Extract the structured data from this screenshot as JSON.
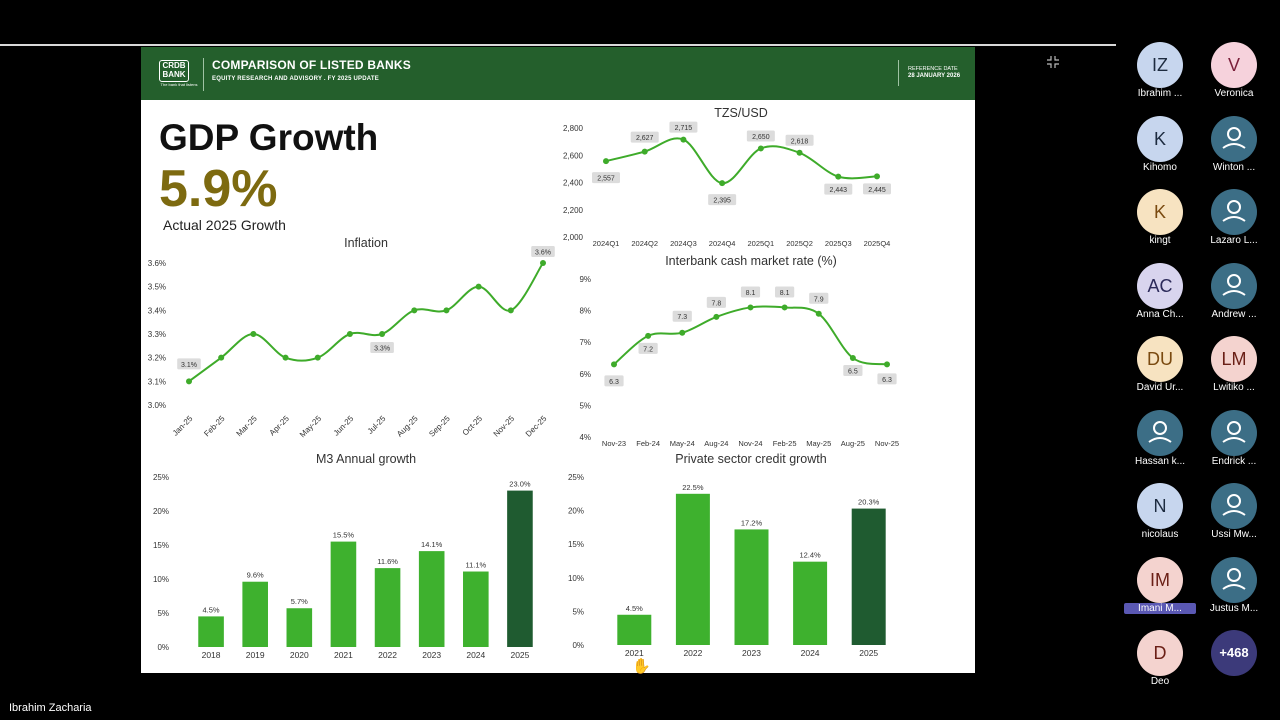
{
  "slide": {
    "header": {
      "logo_text": "CRDB BANK",
      "logo_tagline": "The bank that listens",
      "title": "COMPARISON OF LISTED BANKS",
      "subtitle": "EQUITY RESEARCH AND ADVISORY . FY 2025 UPDATE",
      "ref_label": "REFERENCE DATE",
      "ref_date": "28 JANUARY 2026"
    },
    "gdp": {
      "title": "GDP Growth",
      "value": "5.9%",
      "caption": "Actual 2025 Growth"
    }
  },
  "colors": {
    "banner": "#245f2c",
    "line": "#3eab2a",
    "bar": "#3eb12e",
    "bar_highlight": "#1f5b30",
    "gdp_value": "#7d6a10"
  },
  "chart_data": [
    {
      "id": "tzs",
      "type": "line",
      "title": "TZS/USD",
      "categories": [
        "2024Q1",
        "2024Q2",
        "2024Q3",
        "2024Q4",
        "2025Q1",
        "2025Q2",
        "2025Q3",
        "2025Q4"
      ],
      "values": [
        2557,
        2627,
        2715,
        2395,
        2650,
        2618,
        2443,
        2445
      ],
      "labels": [
        "2,557",
        "2,627",
        "2,715",
        "2,395",
        "2,650",
        "2,618",
        "2,443",
        "2,445"
      ],
      "yticks": [
        "2,000",
        "2,200",
        "2,400",
        "2,600",
        "2,800"
      ],
      "ylim": [
        2000,
        2800
      ],
      "grid": false
    },
    {
      "id": "inflation",
      "type": "line",
      "title": "Inflation",
      "categories": [
        "Jan-25",
        "Feb-25",
        "Mar-25",
        "Apr-25",
        "May-25",
        "Jun-25",
        "Jul-25",
        "Aug-25",
        "Sep-25",
        "Oct-25",
        "Nov-25",
        "Dec-25"
      ],
      "values": [
        3.1,
        3.2,
        3.3,
        3.2,
        3.2,
        3.3,
        3.3,
        3.4,
        3.4,
        3.5,
        3.4,
        3.6
      ],
      "data_labels": {
        "0": "3.1%",
        "6": "3.3%",
        "11": "3.6%"
      },
      "yticks": [
        "3.0%",
        "3.1%",
        "3.2%",
        "3.3%",
        "3.4%",
        "3.5%",
        "3.6%"
      ],
      "ylim": [
        3.0,
        3.6
      ],
      "grid": false
    },
    {
      "id": "interbank",
      "type": "line",
      "title": "Interbank cash market rate (%)",
      "categories": [
        "Nov-23",
        "Feb-24",
        "May-24",
        "Aug-24",
        "Nov-24",
        "Feb-25",
        "May-25",
        "Aug-25",
        "Nov-25"
      ],
      "values": [
        6.3,
        7.2,
        7.3,
        7.8,
        8.1,
        8.1,
        7.9,
        6.5,
        6.3
      ],
      "labels": [
        "6.3",
        "7.2",
        "7.3",
        "7.8",
        "8.1",
        "8.1",
        "7.9",
        "6.5",
        "6.3"
      ],
      "yticks": [
        "4%",
        "5%",
        "6%",
        "7%",
        "8%",
        "9%"
      ],
      "ylim": [
        4,
        9
      ],
      "grid": false
    },
    {
      "id": "m3",
      "type": "bar",
      "title": "M3 Annual growth",
      "categories": [
        "2018",
        "2019",
        "2020",
        "2021",
        "2022",
        "2023",
        "2024",
        "2025"
      ],
      "values": [
        4.5,
        9.6,
        5.7,
        15.5,
        11.6,
        14.1,
        11.1,
        23.0
      ],
      "labels": [
        "4.5%",
        "9.6%",
        "5.7%",
        "15.5%",
        "11.6%",
        "14.1%",
        "11.1%",
        "23.0%"
      ],
      "yticks": [
        "0%",
        "5%",
        "10%",
        "15%",
        "20%",
        "25%"
      ],
      "ylim": [
        0,
        25
      ],
      "highlight_last": true,
      "grid": false
    },
    {
      "id": "credit",
      "type": "bar",
      "title": "Private sector credit growth",
      "categories": [
        "2021",
        "2022",
        "2023",
        "2024",
        "2025"
      ],
      "values": [
        4.5,
        22.5,
        17.2,
        12.4,
        20.3
      ],
      "labels": [
        "4.5%",
        "22.5%",
        "17.2%",
        "12.4%",
        "20.3%"
      ],
      "yticks": [
        "0%",
        "5%",
        "10%",
        "15%",
        "20%",
        "25%"
      ],
      "ylim": [
        0,
        25
      ],
      "highlight_last": true,
      "grid": false
    }
  ],
  "meeting": {
    "presenter": "Ibrahim Zacharia",
    "participants": [
      {
        "initials": "IZ",
        "name": "Ibrahim ...",
        "bg": "#c7d6ee",
        "fg": "#1d2b3f"
      },
      {
        "initials": "V",
        "name": "Veronica",
        "bg": "#f6d2dc",
        "fg": "#7a1f3a"
      },
      {
        "initials": "K",
        "name": "Kihomo",
        "bg": "#c7d6ee",
        "fg": "#1d2b3f"
      },
      {
        "initials": "",
        "name": "Winton ...",
        "bg": "#3c6e86",
        "fg": "#ffffff"
      },
      {
        "initials": "K",
        "name": "kingt",
        "bg": "#f7e3c1",
        "fg": "#7a4a10"
      },
      {
        "initials": "",
        "name": "Lazaro L...",
        "bg": "#3c6e86",
        "fg": "#ffffff"
      },
      {
        "initials": "AC",
        "name": "Anna Ch...",
        "bg": "#d8d4ee",
        "fg": "#2c2a5a"
      },
      {
        "initials": "",
        "name": "Andrew ...",
        "bg": "#3c6e86",
        "fg": "#ffffff"
      },
      {
        "initials": "DU",
        "name": "David Ur...",
        "bg": "#f7e3c1",
        "fg": "#7a4a10"
      },
      {
        "initials": "LM",
        "name": "Lwitiko ...",
        "bg": "#f4d3cf",
        "fg": "#6a1f16"
      },
      {
        "initials": "",
        "name": "Hassan k...",
        "bg": "#3c6e86",
        "fg": "#ffffff"
      },
      {
        "initials": "",
        "name": "Endrick ...",
        "bg": "#3c6e86",
        "fg": "#ffffff"
      },
      {
        "initials": "N",
        "name": "nicolaus",
        "bg": "#c7d6ee",
        "fg": "#1d2b3f"
      },
      {
        "initials": "",
        "name": "Ussi Mw...",
        "bg": "#3c6e86",
        "fg": "#ffffff"
      },
      {
        "initials": "IM",
        "name": "Imani M...",
        "bg": "#f4d3cf",
        "fg": "#6a1f16",
        "name_tag": true
      },
      {
        "initials": "",
        "name": "Justus M...",
        "bg": "#3c6e86",
        "fg": "#ffffff"
      },
      {
        "initials": "D",
        "name": "Deo",
        "bg": "#f4d3cf",
        "fg": "#6a1f16"
      },
      {
        "initials": "+468",
        "name": "",
        "bg": "#3c3a7a",
        "fg": "#ffffff"
      }
    ]
  }
}
